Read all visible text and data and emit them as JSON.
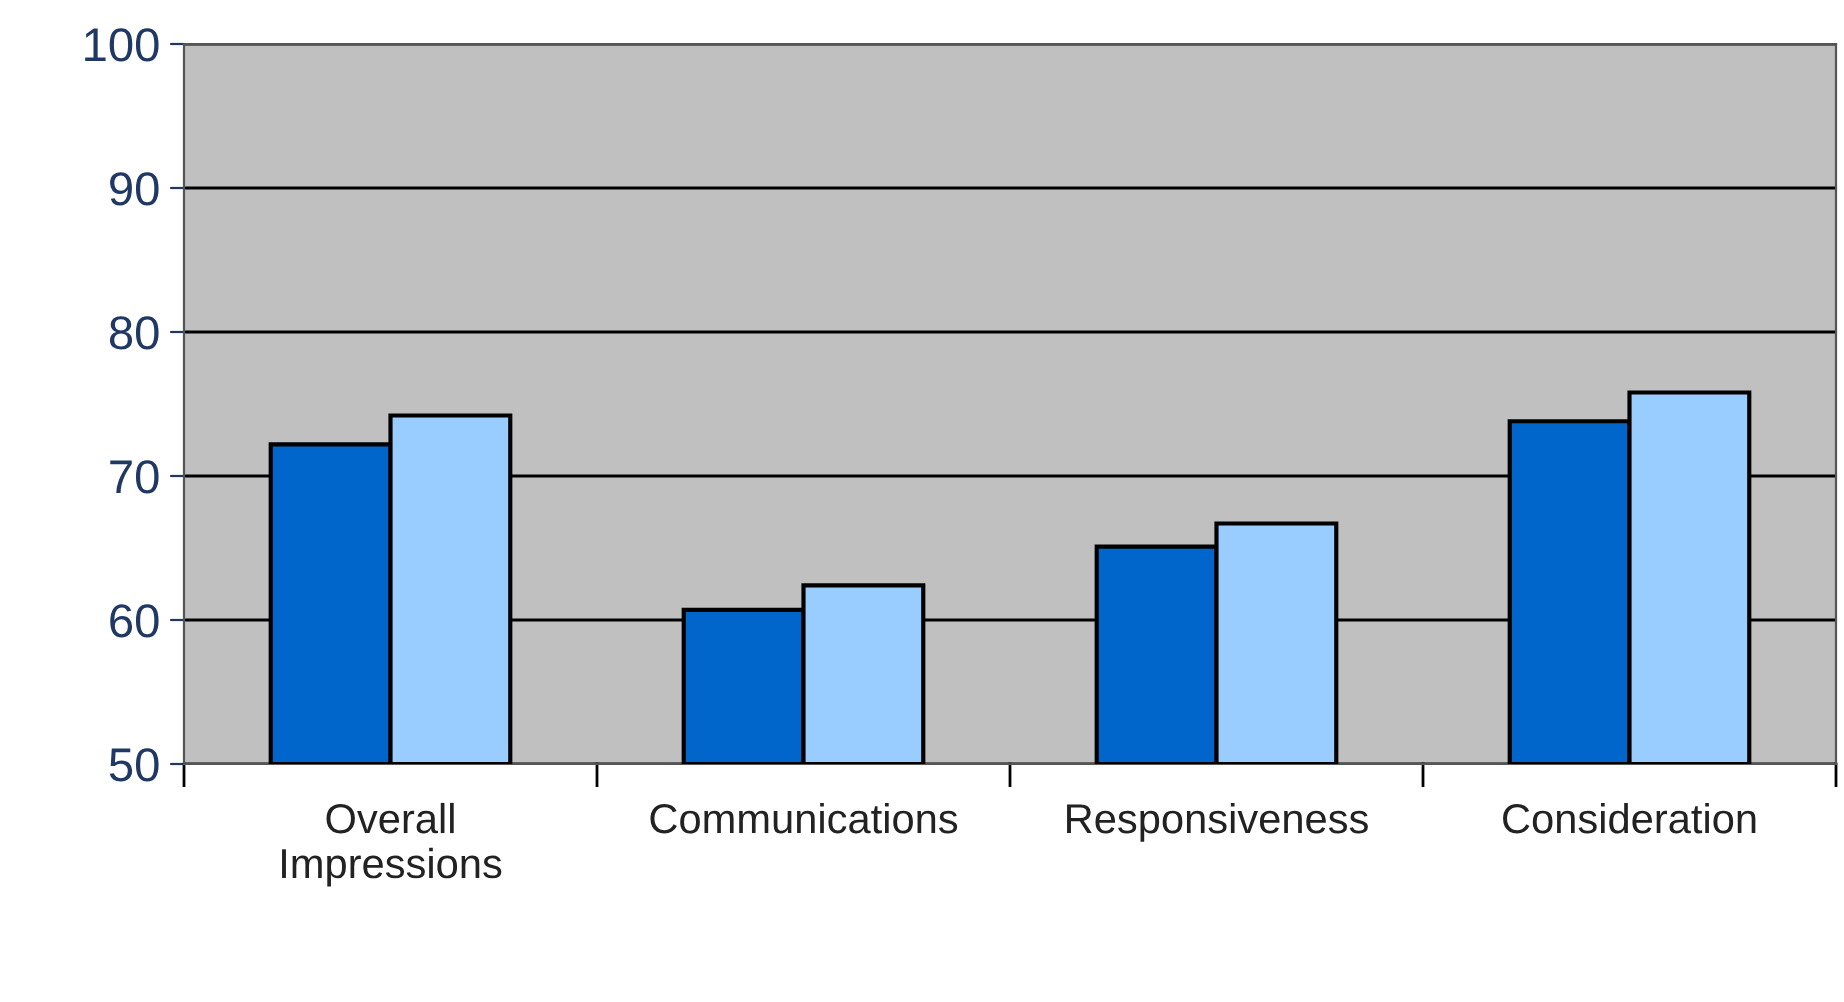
{
  "chart_data": {
    "type": "bar",
    "categories": [
      "Overall\nImpressions",
      "Communications",
      "Responsiveness",
      "Consideration"
    ],
    "series": [
      {
        "color": "#0066cc",
        "values": [
          72.2,
          60.7,
          65.1,
          73.8
        ]
      },
      {
        "color": "#99ccff",
        "values": [
          74.2,
          62.4,
          66.7,
          75.8
        ]
      }
    ],
    "ylim": [
      50,
      100
    ],
    "yticks": [
      50,
      60,
      70,
      80,
      90,
      100
    ],
    "grid": "y",
    "legend": false
  }
}
